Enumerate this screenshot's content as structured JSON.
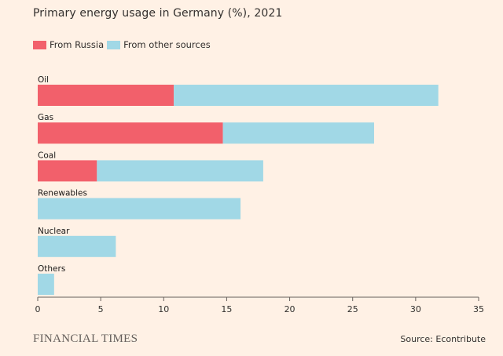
{
  "title": "Primary energy usage in Germany (%), 2021",
  "legend": {
    "russia": "From Russia",
    "other": "From other sources"
  },
  "colors": {
    "russia": "#f2606b",
    "other": "#a1d8e6",
    "axis": "#66605c",
    "background": "#fff1e5"
  },
  "brand": "FINANCIAL TIMES",
  "source": "Source: Econtribute",
  "chart_data": {
    "type": "bar",
    "orientation": "horizontal",
    "stacked": true,
    "title": "Primary energy usage in Germany (%), 2021",
    "categories": [
      "Oil",
      "Gas",
      "Coal",
      "Renewables",
      "Nuclear",
      "Others"
    ],
    "series": [
      {
        "name": "From Russia",
        "values": [
          10.8,
          14.7,
          4.7,
          0,
          0,
          0
        ]
      },
      {
        "name": "From other sources",
        "values": [
          21.0,
          12.0,
          13.2,
          16.1,
          6.2,
          1.3
        ]
      }
    ],
    "xlim": [
      0,
      35
    ],
    "xticks": [
      0,
      5,
      10,
      15,
      20,
      25,
      30,
      35
    ],
    "grid": false,
    "legend_position": "top-left"
  }
}
